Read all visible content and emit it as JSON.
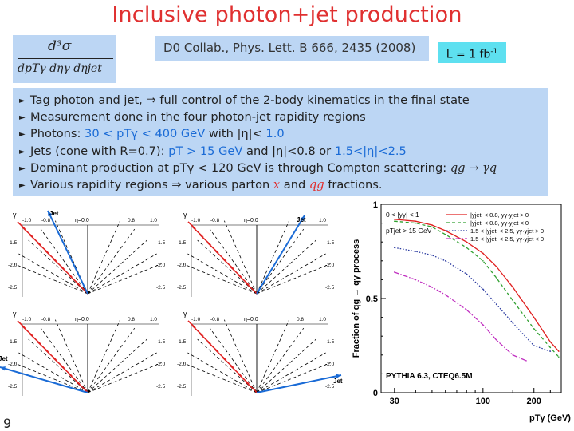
{
  "slide": {
    "title": "Inclusive photon+jet production",
    "reference": "D0 Collab., Phys. Lett. B 666, 2435 (2008)",
    "luminosity": "L = 1 fb",
    "luminosity_sup": "-1",
    "page_number": "9",
    "formula": {
      "numerator": "d³σ",
      "denominator": "dpTγ dηγ dηjet"
    }
  },
  "bullets": [
    {
      "parts": [
        {
          "t": "Tag photon and jet, ⇒ full control of the 2-body kinematics in the final state"
        }
      ]
    },
    {
      "parts": [
        {
          "t": "Measurement done in the four photon-jet rapidity regions"
        }
      ]
    },
    {
      "parts": [
        {
          "t": "Photons: "
        },
        {
          "t": "30 < pTγ < 400  GeV",
          "c": "hl"
        },
        {
          "t": " with |η|< "
        },
        {
          "t": "1.0",
          "c": "hl"
        }
      ]
    },
    {
      "parts": [
        {
          "t": "Jets (cone with R=0.7): "
        },
        {
          "t": "pT > 15 GeV",
          "c": "hl"
        },
        {
          "t": " and |η|<0.8 or "
        },
        {
          "t": "1.5<|η|<2.5",
          "c": "hl"
        }
      ]
    },
    {
      "parts": [
        {
          "t": "Dominant production at pTγ < 120 GeV is through Compton scattering: "
        },
        {
          "t": "qg → γq",
          "c": "it"
        }
      ]
    },
    {
      "parts": [
        {
          "t": "Various rapidity regions  ⇒  various  parton  "
        },
        {
          "t": "x",
          "c": "it red"
        },
        {
          "t": "  and  "
        },
        {
          "t": "qg",
          "c": "it red"
        },
        {
          "t": "  fractions."
        }
      ]
    }
  ],
  "diagrams": {
    "panels": [
      {
        "jet_label": "Jet",
        "photon_label": "γ",
        "eta_label": "η=0.0"
      },
      {
        "jet_label": "Jet",
        "photon_label": "γ",
        "eta_label": "η=0.0"
      },
      {
        "jet_label": "Jet",
        "photon_label": "γ",
        "eta_label": "η=0.0"
      },
      {
        "jet_label": "Jet",
        "photon_label": "γ",
        "eta_label": "η=0.0"
      }
    ],
    "top_labels": [
      "-1.0",
      "-0.8",
      "0.8",
      "1.0"
    ],
    "side_labels": [
      "-1.5",
      "-2.0",
      "-2.5"
    ]
  },
  "chart_data": {
    "type": "line",
    "title": "",
    "xlabel": "pTγ (GeV)",
    "ylabel": "Fraction of qg → qγ process",
    "x_scale": "log",
    "xlim": [
      25,
      290
    ],
    "ylim": [
      0,
      1
    ],
    "x_ticks": [
      30,
      100,
      200
    ],
    "y_ticks": [
      0,
      0.5,
      1
    ],
    "annotation_top": "0 < |yγ| < 1",
    "annotation_cut": "pTjet > 15 GeV",
    "annotation_bottom": "PYTHIA 6.3, CTEQ6.5M",
    "legend_position": "top-right",
    "series": [
      {
        "name": "|yjet| < 0.8,  yγ·yjet > 0",
        "color": "#e02020",
        "dash": "",
        "x": [
          30,
          40,
          50,
          60,
          80,
          100,
          120,
          150,
          200,
          250,
          280
        ],
        "y": [
          0.92,
          0.91,
          0.89,
          0.86,
          0.8,
          0.74,
          0.67,
          0.56,
          0.4,
          0.27,
          0.22
        ]
      },
      {
        "name": "|yjet| < 0.8,  yγ·yjet < 0",
        "color": "#30a030",
        "dash": "4,3",
        "x": [
          30,
          40,
          50,
          60,
          80,
          100,
          120,
          150,
          200,
          250,
          280
        ],
        "y": [
          0.91,
          0.9,
          0.88,
          0.84,
          0.77,
          0.7,
          0.61,
          0.49,
          0.34,
          0.24,
          0.19
        ]
      },
      {
        "name": "1.5 < |yjet| < 2.5,  yγ·yjet > 0",
        "color": "#2a3aa0",
        "dash": "1.5,2",
        "x": [
          30,
          40,
          50,
          60,
          80,
          100,
          120,
          150,
          200,
          250
        ],
        "y": [
          0.77,
          0.75,
          0.73,
          0.7,
          0.63,
          0.55,
          0.47,
          0.37,
          0.25,
          0.22
        ]
      },
      {
        "name": "1.5 < |yjet| < 2.5,  yγ·yjet < 0",
        "color": "#c030c0",
        "dash": "6,2,1.5,2",
        "x": [
          30,
          40,
          50,
          60,
          80,
          100,
          120,
          150,
          180
        ],
        "y": [
          0.64,
          0.6,
          0.56,
          0.52,
          0.44,
          0.36,
          0.28,
          0.2,
          0.17
        ]
      }
    ]
  }
}
